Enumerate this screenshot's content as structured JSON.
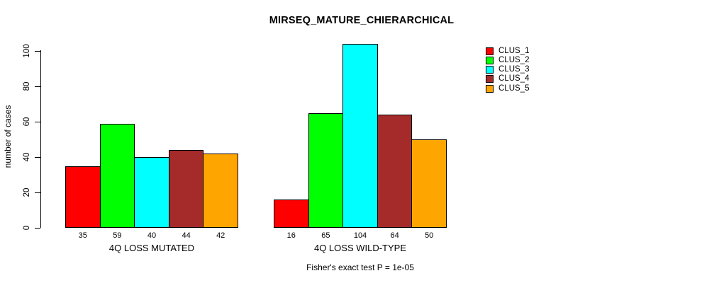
{
  "chart_data": {
    "type": "bar",
    "title": "MIRSEQ_MATURE_CHIERARCHICAL",
    "ylabel": "number of cases",
    "xlabel": "",
    "ylim": [
      0,
      100
    ],
    "yticks": [
      0,
      20,
      40,
      60,
      80,
      100
    ],
    "grid": false,
    "legend_position": "right",
    "bar_value_labels_shown": true,
    "categories": [
      "4Q LOSS MUTATED",
      "4Q LOSS WILD-TYPE"
    ],
    "series": [
      {
        "name": "CLUS_1",
        "color": "#ff0000",
        "values": [
          35,
          16
        ]
      },
      {
        "name": "CLUS_2",
        "color": "#00ff00",
        "values": [
          59,
          65
        ]
      },
      {
        "name": "CLUS_3",
        "color": "#00ffff",
        "values": [
          40,
          104
        ]
      },
      {
        "name": "CLUS_4",
        "color": "#a52a2a",
        "values": [
          44,
          64
        ]
      },
      {
        "name": "CLUS_5",
        "color": "#ffa500",
        "values": [
          42,
          50
        ]
      }
    ],
    "groups": [
      {
        "label": "4Q LOSS MUTATED",
        "values": [
          35,
          59,
          40,
          44,
          42
        ]
      },
      {
        "label": "4Q LOSS WILD-TYPE",
        "values": [
          16,
          65,
          104,
          64,
          50
        ]
      }
    ],
    "footnote": "Fisher's exact test P = 1e-05"
  }
}
